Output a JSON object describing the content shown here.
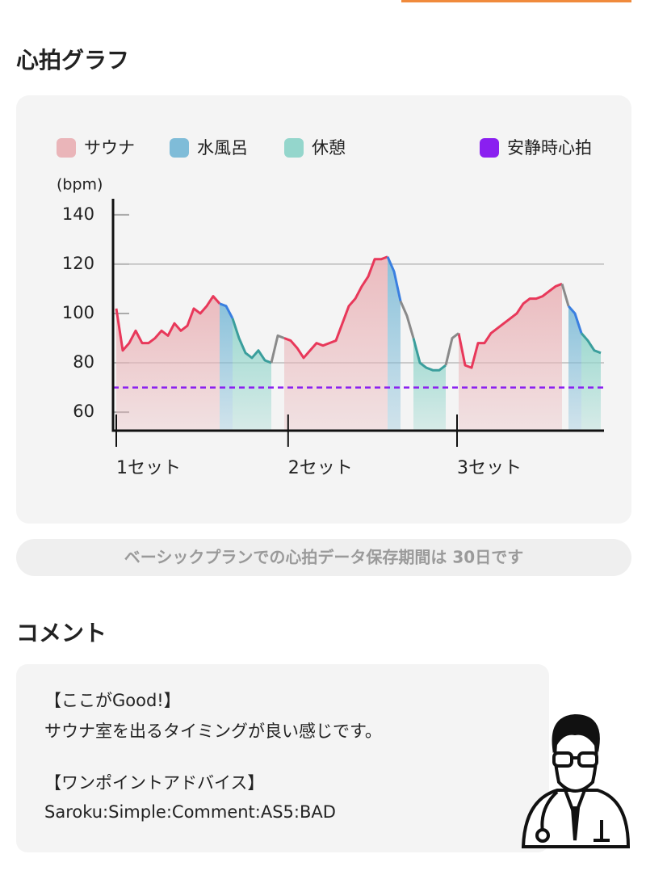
{
  "section_title": "心拍グラフ",
  "chart_data": {
    "type": "line",
    "y_label": "(bpm)",
    "series": [
      {
        "name": "サウナ",
        "color": "#e8385a",
        "fill": "#eab5b9",
        "values": [
          102,
          85,
          88,
          93,
          88,
          88,
          90,
          93,
          91,
          96,
          93,
          95,
          102,
          100,
          103,
          107,
          104,
          null,
          null,
          null,
          null,
          null,
          null,
          null,
          null,
          null,
          90,
          89,
          86,
          82,
          85,
          88,
          87,
          88,
          89,
          96,
          103,
          106,
          111,
          115,
          122,
          122,
          123,
          null,
          null,
          null,
          null,
          null,
          null,
          null,
          null,
          null,
          null,
          92,
          79,
          78,
          88,
          88,
          92,
          94,
          96,
          98,
          100,
          104,
          106,
          106,
          107,
          109,
          111,
          112,
          null,
          null,
          null,
          null,
          null,
          null
        ]
      },
      {
        "name": "水風呂",
        "color": "#3a7fe0",
        "fill": "#7fbcd8",
        "values": [
          null,
          null,
          null,
          null,
          null,
          null,
          null,
          null,
          null,
          null,
          null,
          null,
          null,
          null,
          null,
          null,
          104,
          103,
          98,
          null,
          null,
          null,
          null,
          null,
          null,
          null,
          null,
          null,
          null,
          null,
          null,
          null,
          null,
          null,
          null,
          null,
          null,
          null,
          null,
          null,
          null,
          null,
          123,
          117,
          105,
          null,
          null,
          null,
          null,
          null,
          null,
          null,
          null,
          null,
          null,
          null,
          null,
          null,
          null,
          null,
          null,
          null,
          null,
          null,
          null,
          null,
          null,
          null,
          null,
          null,
          103,
          100,
          92,
          null,
          null,
          null
        ]
      },
      {
        "name": "休憩",
        "color": "#3a9e9c",
        "fill": "#94d6cc",
        "values": [
          null,
          null,
          null,
          null,
          null,
          null,
          null,
          null,
          null,
          null,
          null,
          null,
          null,
          null,
          null,
          null,
          null,
          null,
          98,
          90,
          84,
          82,
          85,
          81,
          80,
          null,
          null,
          null,
          null,
          null,
          null,
          null,
          null,
          null,
          null,
          null,
          null,
          null,
          null,
          null,
          null,
          null,
          null,
          null,
          null,
          null,
          90,
          80,
          78,
          77,
          77,
          79,
          null,
          null,
          null,
          null,
          null,
          null,
          null,
          null,
          null,
          null,
          null,
          null,
          null,
          null,
          null,
          null,
          null,
          null,
          null,
          null,
          92,
          89,
          85,
          84
        ]
      },
      {
        "color": "#8a8a8a",
        "values": [
          null,
          null,
          null,
          null,
          null,
          null,
          null,
          null,
          null,
          null,
          null,
          null,
          null,
          null,
          null,
          null,
          null,
          null,
          null,
          null,
          null,
          null,
          null,
          null,
          80,
          91,
          90,
          null,
          null,
          null,
          null,
          null,
          null,
          null,
          null,
          null,
          null,
          null,
          null,
          null,
          null,
          null,
          null,
          null,
          105,
          99,
          90,
          null,
          null,
          null,
          null,
          79,
          90,
          92,
          null,
          null,
          null,
          null,
          null,
          null,
          null,
          null,
          null,
          null,
          null,
          null,
          null,
          null,
          null,
          112,
          103,
          null,
          null,
          null,
          null,
          null
        ]
      }
    ],
    "reference_line": {
      "name": "安静時心拍",
      "color": "#8a1ff0",
      "value": 70
    },
    "xlim": [
      0,
      75
    ],
    "xticks": [
      {
        "value": 0,
        "label": "1セット"
      },
      {
        "value": 26.6,
        "label": "2セット"
      },
      {
        "value": 52.75,
        "label": "3セット"
      }
    ],
    "ylim": [
      52.5,
      146.5
    ],
    "yticks": [
      60,
      80,
      100,
      120,
      140
    ],
    "grid_values": [
      80,
      120
    ]
  },
  "notice": "ベーシックプランでの心拍データ保存期間は 30日です",
  "comment_title": "コメント",
  "comment_paragraphs": [
    [
      "【ここがGood!】",
      "サウナ室を出るタイミングが良い感じです。"
    ],
    [
      "【ワンポイントアドバイス】",
      "Saroku:Simple:Comment:AS5:BAD"
    ]
  ]
}
